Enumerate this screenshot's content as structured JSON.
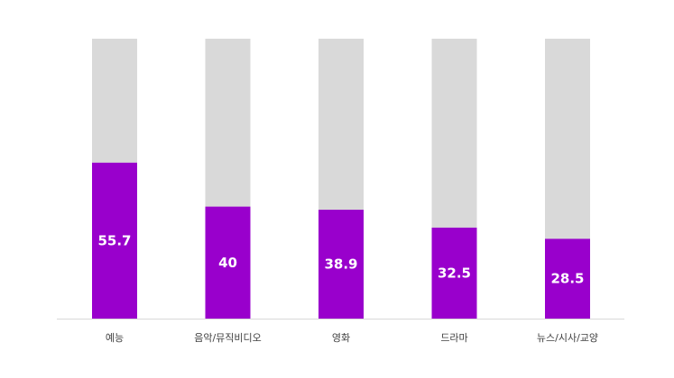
{
  "colors": {
    "bar": "#9900cc",
    "background_bar": "#d9d9d9",
    "axis": "#d9d9d9",
    "label_text": "#ffffff",
    "tick_text": "#404040"
  },
  "chart_data": {
    "type": "bar",
    "stacked_remainder_to": 100,
    "categories": [
      "예능",
      "음악/뮤직비디오",
      "영화",
      "드라마",
      "뉴스/시사/교양"
    ],
    "values": [
      55.7,
      40,
      38.9,
      32.5,
      28.5
    ],
    "data_labels": [
      "55.7",
      "40",
      "38.9",
      "32.5",
      "28.5"
    ],
    "ylim": [
      0,
      100
    ],
    "grid": false,
    "legend": "none",
    "title": "",
    "xlabel": "",
    "ylabel": ""
  }
}
